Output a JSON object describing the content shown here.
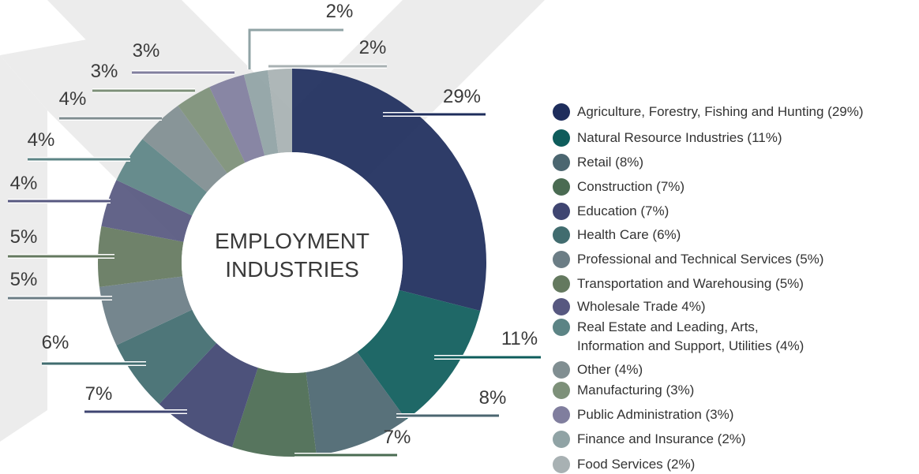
{
  "chart_data": {
    "type": "pie",
    "donut": true,
    "center_label": [
      "EMPLOYMENT",
      "INDUSTRIES"
    ],
    "series": [
      {
        "name": "Agriculture, Forestry, Fishing and Hunting (29%)",
        "color": "#1e2d5c"
      },
      {
        "name": "Natural Resource Industries (11%)",
        "color": "#0e5c5b"
      },
      {
        "name": "Retail (8%)",
        "color": "#4b6670"
      },
      {
        "name": "Construction (7%)",
        "color": "#4a6b52"
      },
      {
        "name": "Education (7%)",
        "color": "#3f4571"
      },
      {
        "name": "Health Care (6%)",
        "color": "#416c6f"
      },
      {
        "name": "Professional and Technical Services (5%)",
        "color": "#6b7d85"
      },
      {
        "name": "Transportation and Warehousing (5%)",
        "color": "#64795f"
      },
      {
        "name": "Wholesale Trade 4%)",
        "color": "#575880"
      },
      {
        "name": "Real Estate and Leading, Arts,\nInformation and Support, Utilities (4%)",
        "color": "#5c8485"
      },
      {
        "name": "Other (4%)",
        "color": "#808e91"
      },
      {
        "name": "Manufacturing (3%)",
        "color": "#7d9079"
      },
      {
        "name": "Public Administration (3%)",
        "color": "#807e9e"
      },
      {
        "name": "Finance and Insurance (2%)",
        "color": "#90a3a5"
      },
      {
        "name": "Food Services (2%)",
        "color": "#a8b1b3"
      }
    ],
    "values": [
      29,
      11,
      8,
      7,
      7,
      6,
      5,
      5,
      4,
      4,
      4,
      3,
      3,
      2,
      2
    ],
    "value_labels": [
      "29%",
      "11%",
      "8%",
      "7%",
      "7%",
      "6%",
      "5%",
      "5%",
      "4%",
      "4%",
      "4%",
      "3%",
      "3%",
      "2%",
      "2%"
    ]
  }
}
